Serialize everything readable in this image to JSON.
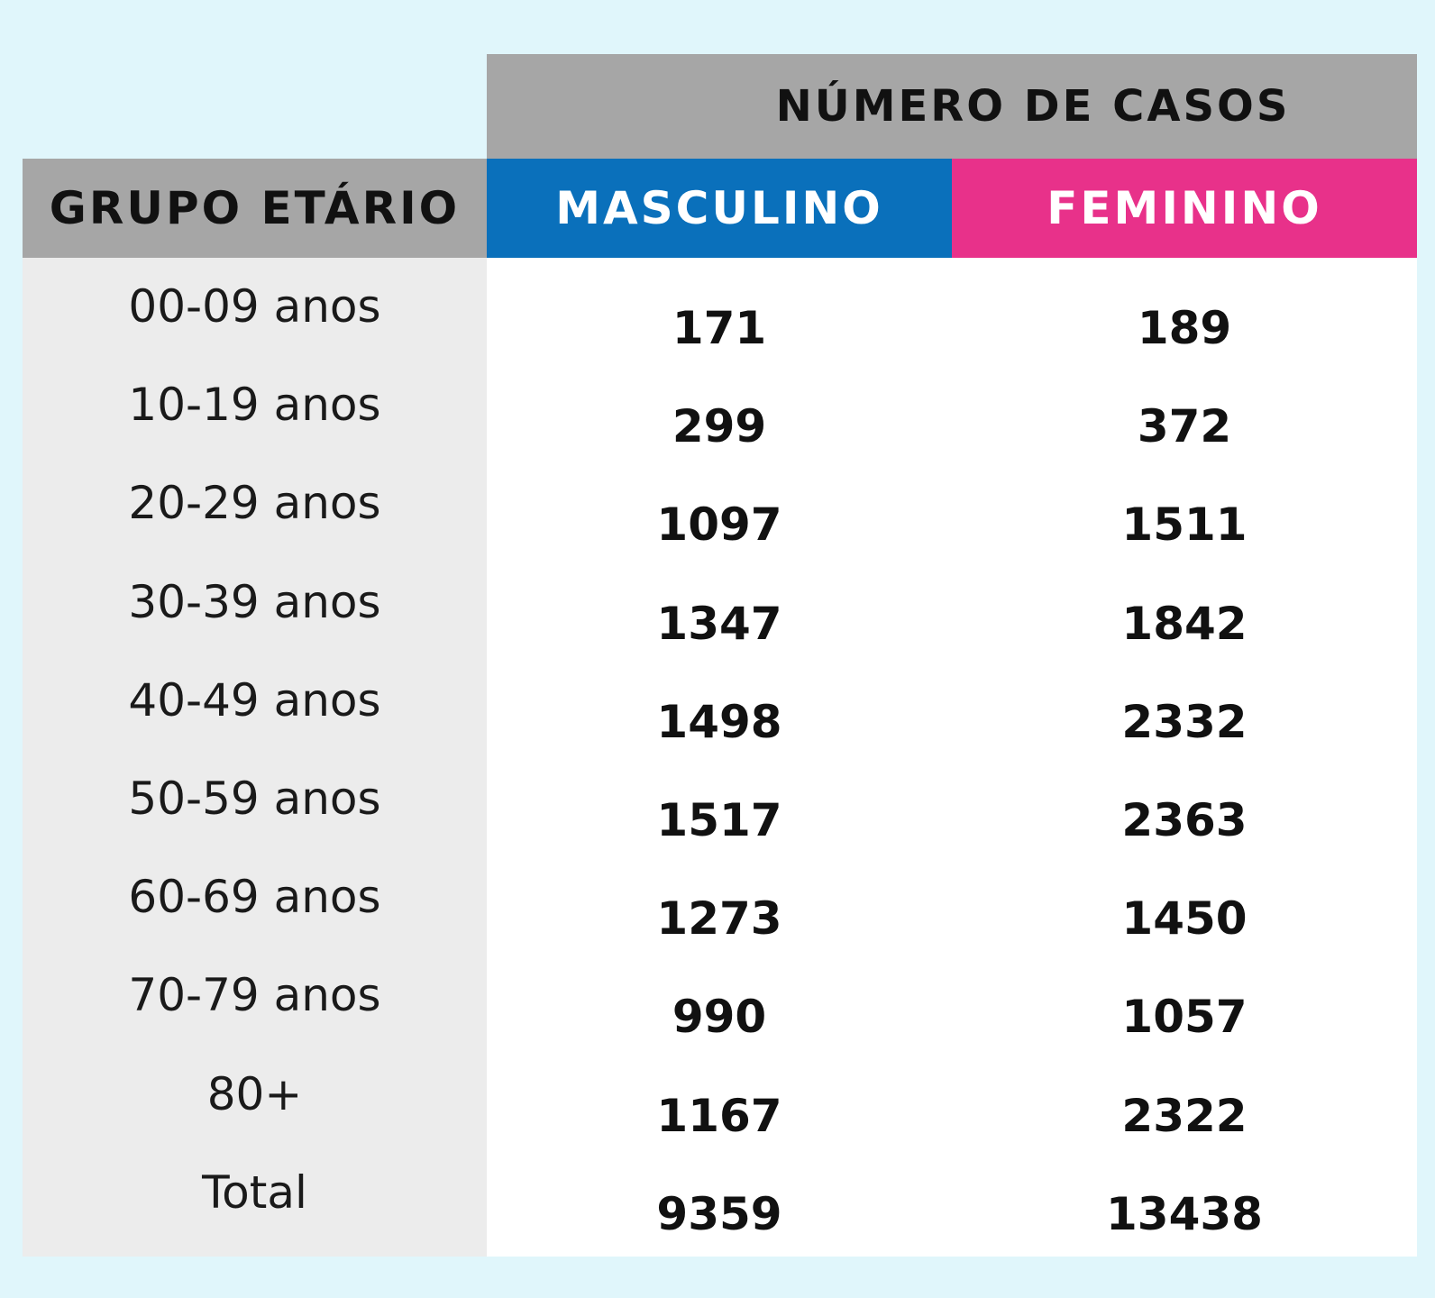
{
  "colors": {
    "masculino": "#0a70bb",
    "feminino": "#e8318a",
    "header_gray": "#a6a6a6"
  },
  "header": {
    "top": "NÚMERO DE CASOS",
    "group": "GRUPO ETÁRIO",
    "masculino": "MASCULINO",
    "feminino": "FEMININO"
  },
  "chart_data": {
    "type": "table",
    "columns": [
      "GRUPO ETÁRIO",
      "MASCULINO",
      "FEMININO"
    ],
    "rows": [
      {
        "group": "00-09 anos",
        "masculino": "171",
        "feminino": "189"
      },
      {
        "group": "10-19 anos",
        "masculino": "299",
        "feminino": "372"
      },
      {
        "group": "20-29 anos",
        "masculino": "1097",
        "feminino": "1511"
      },
      {
        "group": "30-39 anos",
        "masculino": "1347",
        "feminino": "1842"
      },
      {
        "group": "40-49 anos",
        "masculino": "1498",
        "feminino": "2332"
      },
      {
        "group": "50-59 anos",
        "masculino": "1517",
        "feminino": "2363"
      },
      {
        "group": "60-69 anos",
        "masculino": "1273",
        "feminino": "1450"
      },
      {
        "group": "70-79 anos",
        "masculino": "990",
        "feminino": "1057"
      },
      {
        "group": "80+",
        "masculino": "1167",
        "feminino": "2322"
      },
      {
        "group": "Total",
        "masculino": "9359",
        "feminino": "13438"
      }
    ]
  }
}
